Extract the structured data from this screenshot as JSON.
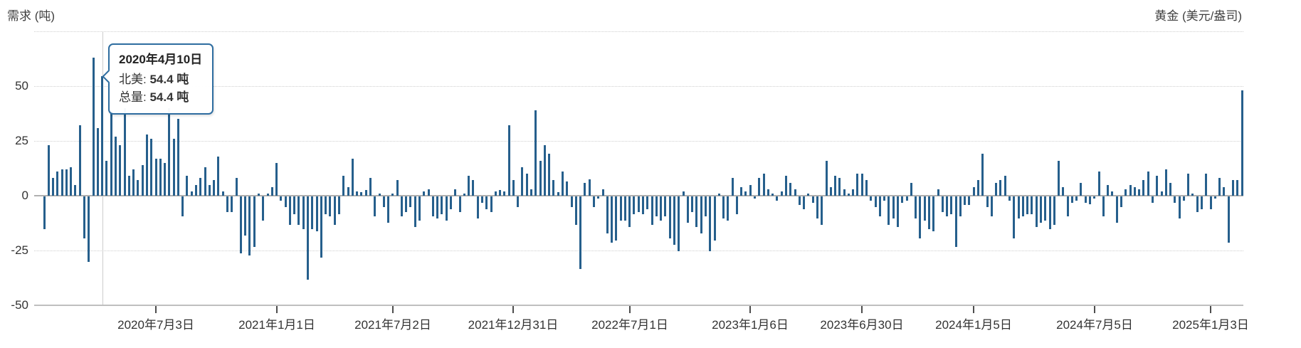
{
  "chart_data": {
    "type": "bar",
    "left_axis_title": "需求 (吨)",
    "right_axis_title": "黄金 (美元/盎司)",
    "unit": "吨",
    "bar_color": "#265f8c",
    "grid_color": "#cfcfcf",
    "ylim": [
      -50,
      75
    ],
    "grid_levels": [
      75,
      50,
      25,
      -25
    ],
    "yticks": [
      {
        "value": 50,
        "label": "50"
      },
      {
        "value": 25,
        "label": "25"
      },
      {
        "value": 0,
        "label": "0"
      },
      {
        "value": -25,
        "label": "-25"
      },
      {
        "value": -50,
        "label": "-50"
      }
    ],
    "x_ticks": [
      {
        "label": "2020年7月3日",
        "index": 25
      },
      {
        "label": "2021年1月1日",
        "index": 52
      },
      {
        "label": "2021年7月2日",
        "index": 78
      },
      {
        "label": "2021年12月31日",
        "index": 105
      },
      {
        "label": "2022年7月1日",
        "index": 131
      },
      {
        "label": "2023年1月6日",
        "index": 158
      },
      {
        "label": "2023年6月30日",
        "index": 183
      },
      {
        "label": "2024年1月5日",
        "index": 208
      },
      {
        "label": "2024年7月5日",
        "index": 235
      },
      {
        "label": "2025年1月3日",
        "index": 261
      }
    ],
    "series": [
      {
        "name": "北美",
        "values": [
          -15,
          23,
          8,
          11,
          12,
          12,
          13,
          5,
          32,
          -19,
          -30,
          63,
          31,
          54.4,
          16,
          38,
          27,
          23,
          40,
          9,
          12,
          7,
          14,
          28,
          26,
          17,
          17,
          15,
          40,
          26,
          35,
          -9,
          9,
          2,
          5,
          8,
          13,
          5,
          7,
          18,
          2,
          -7,
          -7,
          8,
          -26,
          -18,
          -27,
          -23,
          1,
          -11,
          1,
          4,
          15,
          -2,
          -5,
          -13,
          -8,
          -13,
          -15,
          -38,
          -15,
          -16,
          -28,
          -8,
          -9,
          -13,
          -8,
          9,
          4,
          17,
          2,
          1.5,
          2.5,
          8,
          -9,
          1,
          -5,
          -12,
          1,
          7,
          -9,
          -7,
          -5,
          -14,
          -11,
          2,
          3,
          -9,
          -10,
          -8,
          -11,
          -6,
          3,
          -7,
          1,
          9,
          7,
          -10,
          -3,
          -6,
          -7,
          2,
          2.5,
          2,
          32,
          7,
          -5,
          13,
          10,
          3,
          39,
          16,
          23,
          19,
          7,
          1.5,
          11,
          6.5,
          -5,
          -13,
          -33,
          6,
          7.5,
          -5,
          -1,
          3,
          -17,
          -21,
          -20,
          -11,
          -11,
          -14,
          -8,
          -7,
          -8,
          -6,
          -13,
          -9,
          -11,
          -9,
          -19,
          -22,
          -25,
          2,
          -12,
          -7,
          -14,
          -17,
          -9,
          -25,
          -20,
          1,
          -10,
          -11,
          8,
          -8,
          4,
          2,
          5,
          -1,
          8,
          10,
          3,
          1,
          -2,
          2,
          9,
          6,
          3,
          -4,
          -6,
          1,
          -3,
          -10,
          -13,
          16,
          4,
          9,
          8,
          3,
          1,
          3,
          10,
          10,
          7,
          -2,
          -5,
          -9,
          -2,
          -13,
          -10,
          -14,
          -3,
          -2,
          6,
          -10,
          -19,
          -11,
          -15,
          -16,
          3,
          -7,
          -9,
          -8,
          -23,
          -9,
          -4,
          -4,
          4,
          7,
          19,
          -5,
          -9,
          6,
          7,
          9,
          -2,
          -19,
          -10,
          -9,
          -8,
          -8,
          -14,
          -12,
          -11,
          -15,
          -13,
          16,
          4,
          -9,
          -3,
          -2,
          6,
          -3,
          -3.5,
          -1,
          11,
          -9,
          5,
          2,
          -12,
          -5,
          3,
          5,
          4,
          3,
          7,
          11,
          -3,
          9,
          2,
          12,
          6,
          -3,
          -10,
          -2,
          10,
          1,
          -7,
          -6,
          10,
          -6,
          -1,
          8,
          4,
          -21,
          7,
          7,
          48
        ]
      }
    ],
    "highlight": {
      "index": 13,
      "tooltip_title": "2020年4月10日",
      "rows": [
        {
          "label": "北美:",
          "value": "54.4 吨"
        },
        {
          "label": "总量:",
          "value": "54.4 吨"
        }
      ]
    },
    "legend": "none"
  }
}
